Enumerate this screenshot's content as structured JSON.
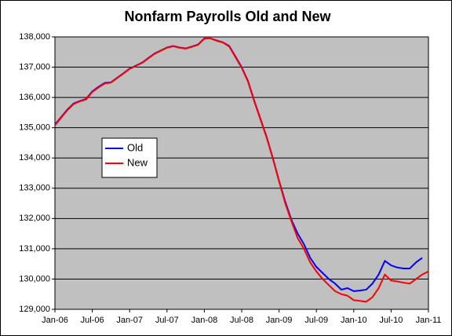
{
  "chart_data": {
    "type": "line",
    "title": "Nonfarm Payrolls Old and New",
    "categories": [
      "Jan-06",
      null,
      null,
      null,
      null,
      null,
      "Jul-06",
      null,
      null,
      null,
      null,
      null,
      "Jan-07",
      null,
      null,
      null,
      null,
      null,
      "Jul-07",
      null,
      null,
      null,
      null,
      null,
      "Jan-08",
      null,
      null,
      null,
      null,
      null,
      "Jul-08",
      null,
      null,
      null,
      null,
      null,
      "Jan-09",
      null,
      null,
      null,
      null,
      null,
      "Jul-09",
      null,
      null,
      null,
      null,
      null,
      "Jan-10",
      null,
      null,
      null,
      null,
      null,
      "Jul-10",
      null,
      null,
      null,
      null,
      null,
      "Jan-11"
    ],
    "series": [
      {
        "name": "Old",
        "color": "#0000ff",
        "values": [
          135100,
          135350,
          135600,
          135800,
          135880,
          135950,
          136200,
          136350,
          136480,
          136500,
          136650,
          136800,
          136950,
          137050,
          137150,
          137300,
          137450,
          137550,
          137650,
          137700,
          137650,
          137620,
          137680,
          137750,
          137950,
          137950,
          137880,
          137820,
          137700,
          137350,
          137000,
          136550,
          135900,
          135300,
          134700,
          134000,
          133250,
          132550,
          131950,
          131500,
          131150,
          130700,
          130400,
          130200,
          130000,
          129850,
          129650,
          129700,
          129600,
          129620,
          129650,
          129850,
          130150,
          130600,
          130450,
          130380,
          130350,
          130350,
          130550,
          130700,
          null
        ]
      },
      {
        "name": "New",
        "color": "#ff0000",
        "values": [
          135080,
          135330,
          135580,
          135780,
          135870,
          135930,
          136180,
          136330,
          136460,
          136490,
          136640,
          136790,
          136940,
          137040,
          137140,
          137290,
          137440,
          137540,
          137640,
          137690,
          137640,
          137610,
          137670,
          137740,
          137940,
          137950,
          137870,
          137810,
          137680,
          137330,
          136980,
          136530,
          135880,
          135280,
          134680,
          133980,
          133230,
          132500,
          131900,
          131350,
          131000,
          130550,
          130250,
          130000,
          129800,
          129600,
          129500,
          129450,
          129300,
          129280,
          129250,
          129400,
          129700,
          130150,
          129950,
          129920,
          129880,
          129850,
          130000,
          130150,
          130250
        ]
      }
    ],
    "ylim": [
      129000,
      138000
    ],
    "yticks": [
      {
        "value": 129000,
        "label": "129,000"
      },
      {
        "value": 130000,
        "label": "130,000"
      },
      {
        "value": 131000,
        "label": "131,000"
      },
      {
        "value": 132000,
        "label": "132,000"
      },
      {
        "value": 133000,
        "label": "133,000"
      },
      {
        "value": 134000,
        "label": "134,000"
      },
      {
        "value": 135000,
        "label": "135,000"
      },
      {
        "value": 136000,
        "label": "136,000"
      },
      {
        "value": 137000,
        "label": "137,000"
      },
      {
        "value": 138000,
        "label": "138,000"
      }
    ],
    "grid": true,
    "legend": "left",
    "plot_background": "#c0c0c0"
  }
}
